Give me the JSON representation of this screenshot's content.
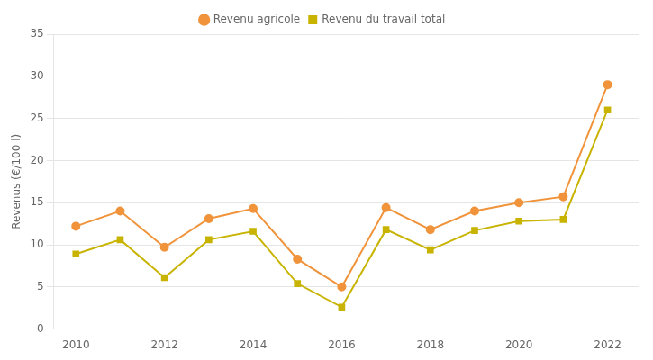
{
  "chart_data": {
    "type": "line",
    "x": [
      2010,
      2011,
      2012,
      2013,
      2014,
      2015,
      2016,
      2017,
      2018,
      2019,
      2020,
      2021,
      2022
    ],
    "series": [
      {
        "name": "Revenu agricole",
        "color": "#f0933a",
        "marker": "circle",
        "values": [
          12.2,
          14.0,
          9.7,
          13.1,
          14.3,
          8.3,
          5.0,
          14.4,
          11.8,
          14.0,
          15.0,
          15.7,
          29.0
        ]
      },
      {
        "name": "Revenu du travail total",
        "color": "#c8b400",
        "marker": "square",
        "values": [
          8.9,
          10.6,
          6.1,
          10.6,
          11.6,
          5.4,
          2.6,
          11.8,
          9.4,
          11.7,
          12.8,
          13.0,
          26.0
        ]
      }
    ],
    "ylabel": "Revenus (€/100 l)",
    "xlim": [
      2009.5,
      2022.7
    ],
    "xticks": [
      2010,
      2012,
      2014,
      2016,
      2018,
      2020,
      2022
    ],
    "ylim": [
      0,
      35
    ],
    "yticks": [
      0,
      5,
      10,
      15,
      20,
      25,
      30,
      35
    ],
    "grid": "y",
    "legend": "top"
  }
}
